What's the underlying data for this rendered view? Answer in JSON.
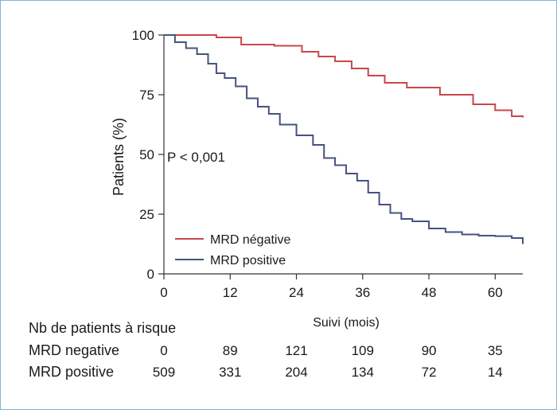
{
  "chart_data": {
    "type": "line",
    "step": true,
    "xlabel": "Suivi (mois)",
    "ylabel": "Patients (%)",
    "xlim": [
      0,
      65
    ],
    "ylim": [
      0,
      100
    ],
    "xticks": [
      0,
      12,
      24,
      36,
      48,
      60
    ],
    "yticks": [
      0,
      25,
      50,
      75,
      100
    ],
    "grid": false,
    "legend_position": "bottom-left",
    "annotation": "P < 0,001",
    "series": [
      {
        "name": "MRD négative",
        "color": "#c8474b",
        "x": [
          0,
          9.5,
          14,
          20,
          25,
          28,
          31,
          34,
          37,
          40,
          44,
          50,
          56,
          60,
          63,
          65
        ],
        "y": [
          100,
          99,
          96,
          95.5,
          93,
          91,
          89,
          86,
          83,
          80,
          78,
          75,
          71,
          68.5,
          66,
          65.5
        ]
      },
      {
        "name": "MRD positive",
        "color": "#45537f",
        "x": [
          0,
          2,
          4,
          6,
          8,
          9.5,
          11,
          13,
          15,
          17,
          19,
          21,
          24,
          27,
          29,
          31,
          33,
          35,
          37,
          39,
          41,
          43,
          45,
          48,
          51,
          54,
          57,
          60,
          63,
          65
        ],
        "y": [
          100,
          97,
          94.5,
          92,
          88,
          84,
          82,
          78.5,
          73.5,
          70,
          67,
          62.5,
          58,
          54,
          48.5,
          45.5,
          42,
          39,
          34,
          29,
          25.5,
          23,
          22,
          19,
          17.5,
          16.5,
          16,
          15.8,
          15,
          12.5
        ]
      }
    ],
    "risk_table": {
      "title": "Nb de patients à risque",
      "times": [
        0,
        12,
        24,
        36,
        48,
        60
      ],
      "rows": [
        {
          "label": "MRD negative",
          "values": [
            "0",
            "89",
            "121",
            "109",
            "90",
            "35"
          ]
        },
        {
          "label": "MRD positive",
          "values": [
            "509",
            "331",
            "204",
            "134",
            "72",
            "14"
          ]
        }
      ]
    }
  }
}
